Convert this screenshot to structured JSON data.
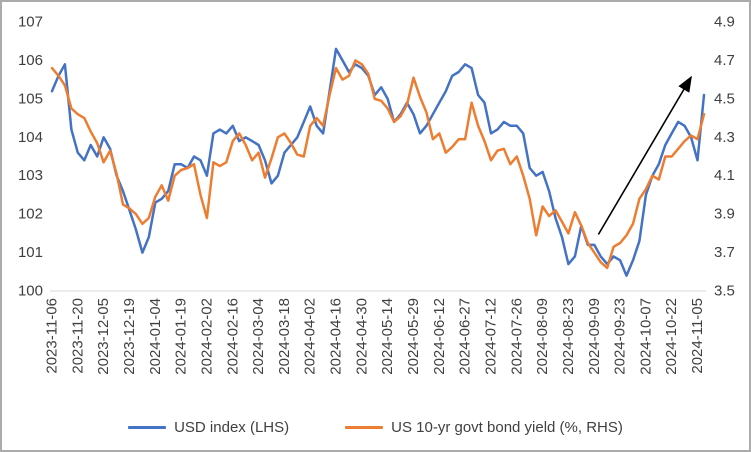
{
  "frame": {
    "background": "#ffffff",
    "border_color": "#ababab"
  },
  "text_color": "#404040",
  "chart_data": {
    "type": "line",
    "title": "",
    "grid": false,
    "legend_position": "bottom",
    "points_per_tick": 4,
    "categories": [
      "2023-11-06",
      "2023-11-20",
      "2023-12-05",
      "2023-12-19",
      "2024-01-04",
      "2024-01-19",
      "2024-02-02",
      "2024-02-16",
      "2024-03-04",
      "2024-03-18",
      "2024-04-02",
      "2024-04-16",
      "2024-04-30",
      "2024-05-14",
      "2024-05-29",
      "2024-06-12",
      "2024-06-27",
      "2024-07-12",
      "2024-07-26",
      "2024-08-09",
      "2024-08-23",
      "2024-09-09",
      "2024-09-23",
      "2024-10-07",
      "2024-10-22",
      "2024-11-05"
    ],
    "left_axis": {
      "min": 100,
      "max": 107,
      "step": 1,
      "tick_labels": [
        "100",
        "101",
        "102",
        "103",
        "104",
        "105",
        "106",
        "107"
      ]
    },
    "right_axis": {
      "min": 3.5,
      "max": 4.9,
      "step": 0.2,
      "tick_labels": [
        "3.5",
        "3.7",
        "3.9",
        "4.1",
        "4.3",
        "4.5",
        "4.7",
        "4.9"
      ]
    },
    "series": [
      {
        "name": "USD index (LHS)",
        "axis": "left",
        "color": "#4472C4",
        "values": [
          105.2,
          105.6,
          105.9,
          104.2,
          103.6,
          103.4,
          103.8,
          103.5,
          104.0,
          103.7,
          103.0,
          102.6,
          102.1,
          101.6,
          101.0,
          101.4,
          102.3,
          102.4,
          102.6,
          103.3,
          103.3,
          103.2,
          103.5,
          103.4,
          103.0,
          104.1,
          104.2,
          104.1,
          104.3,
          103.9,
          104.0,
          103.9,
          103.8,
          103.4,
          102.8,
          103.0,
          103.6,
          103.8,
          104.0,
          104.4,
          104.8,
          104.3,
          104.1,
          105.2,
          106.3,
          106.0,
          105.7,
          105.9,
          105.8,
          105.6,
          105.1,
          105.3,
          105.0,
          104.4,
          104.6,
          104.9,
          104.6,
          104.1,
          104.3,
          104.6,
          104.9,
          105.2,
          105.6,
          105.7,
          105.9,
          105.8,
          105.1,
          104.9,
          104.1,
          104.2,
          104.4,
          104.3,
          104.3,
          104.1,
          103.2,
          103.0,
          103.1,
          102.6,
          101.9,
          101.4,
          100.7,
          100.9,
          101.7,
          101.2,
          101.2,
          100.9,
          100.7,
          100.9,
          100.8,
          100.4,
          100.8,
          101.3,
          102.5,
          103.0,
          103.3,
          103.8,
          104.1,
          104.4,
          104.3,
          104.0,
          103.4,
          105.1
        ]
      },
      {
        "name": "US 10-yr govt bond yield (%, RHS)",
        "axis": "right",
        "color": "#ED7D31",
        "values": [
          4.66,
          4.62,
          4.57,
          4.45,
          4.42,
          4.4,
          4.33,
          4.27,
          4.17,
          4.23,
          4.11,
          3.95,
          3.93,
          3.9,
          3.85,
          3.88,
          3.99,
          4.05,
          3.97,
          4.1,
          4.13,
          4.14,
          4.16,
          4.0,
          3.88,
          4.17,
          4.15,
          4.17,
          4.28,
          4.32,
          4.26,
          4.18,
          4.22,
          4.09,
          4.19,
          4.3,
          4.32,
          4.27,
          4.21,
          4.2,
          4.36,
          4.4,
          4.36,
          4.52,
          4.66,
          4.6,
          4.62,
          4.7,
          4.68,
          4.63,
          4.5,
          4.49,
          4.45,
          4.38,
          4.41,
          4.47,
          4.61,
          4.51,
          4.43,
          4.29,
          4.32,
          4.22,
          4.25,
          4.29,
          4.29,
          4.48,
          4.36,
          4.28,
          4.18,
          4.23,
          4.24,
          4.16,
          4.2,
          4.1,
          3.98,
          3.79,
          3.94,
          3.89,
          3.92,
          3.86,
          3.8,
          3.91,
          3.84,
          3.75,
          3.7,
          3.65,
          3.62,
          3.73,
          3.75,
          3.79,
          3.85,
          3.98,
          4.03,
          4.1,
          4.08,
          4.2,
          4.2,
          4.24,
          4.28,
          4.31,
          4.29,
          4.42
        ]
      }
    ],
    "annotation_arrow": {
      "x1": 0.838,
      "y1": 0.79,
      "x2": 0.979,
      "y2": 0.21,
      "color": "#000000"
    },
    "axis_line_color": "#d9d9d9"
  },
  "legend": {
    "items": [
      {
        "label": "USD index (LHS)"
      },
      {
        "label": "US 10-yr govt bond yield (%, RHS)"
      }
    ]
  }
}
